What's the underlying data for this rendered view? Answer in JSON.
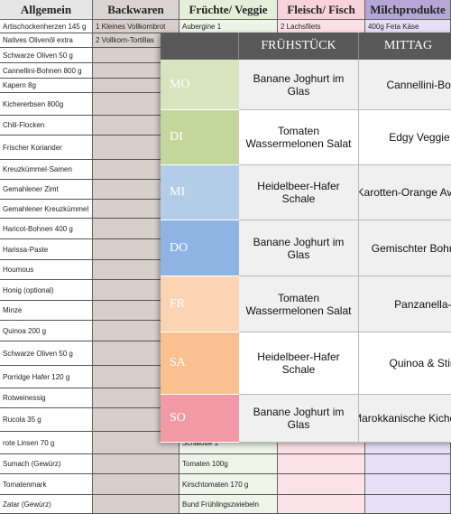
{
  "shopping_list": {
    "columns": [
      {
        "header": "Allgemein",
        "top_items": [
          "Artischockenherzen 145 g",
          "Natives Olivenöl extra",
          "Schwarze Oliven 50 g",
          "Cannellini-Bohnen 800 g",
          "Kapern 8g",
          "Kichererbsen 800g",
          "Chili-Flocken",
          "Frischer Koriander",
          "Kreuzkümmel-Samen",
          "Gemahlener Zimt",
          "Gemahlener Kreuzkümmel",
          "Haricot-Bohnen 400 g",
          "Harissa-Paste",
          "Houmous",
          "Honig (optional)",
          "Minze",
          "Quinoa 200 g",
          "Schwarze Oliven 50 g",
          "Porridge Hafer 120 g",
          "Rotweinessig",
          "Rucola 35 g",
          "rote Linsen 70 g",
          "Sumach (Gewürz)",
          "Tomatenmark",
          "Zatar (Gewürz)"
        ],
        "bottom_items": []
      },
      {
        "header": "Backwaren",
        "top_items": [
          "1 Kleines Vollkornbrot",
          "2 Vollkorn-Tortillas"
        ],
        "bottom_items": []
      },
      {
        "header": "Früchte/ Veggie",
        "top_items": [
          "Aubergine 1"
        ],
        "bottom_items": [
          "Schalotte 1",
          "Tomaten 100g",
          "Kirschtomaten 170 g",
          "Bund Frühlingszwiebeln"
        ]
      },
      {
        "header": "Fleisch/ Fisch",
        "top_items": [
          "2 Lachsfilets"
        ],
        "bottom_items": []
      },
      {
        "header": "Milchprodukte",
        "top_items": [
          "400g Feta Käse"
        ],
        "bottom_items": []
      }
    ]
  },
  "meal_plan": {
    "headers": [
      "FRÜHSTÜCK",
      "MITTAG"
    ],
    "days": [
      {
        "day": "MO",
        "breakfast": "Banane Joghurt im Glas",
        "lunch": "Cannellini-Bohnen"
      },
      {
        "day": "DI",
        "breakfast": "Tomaten Wassermelonen Salat",
        "lunch": "Edgy Veggie Wra"
      },
      {
        "day": "MI",
        "breakfast": "Heidelbeer-Hafer Schale",
        "lunch": "Karotten-Orange Avocadosalat"
      },
      {
        "day": "DO",
        "breakfast": "Banane Joghurt im Glas",
        "lunch": "Gemischter Bohnensalat"
      },
      {
        "day": "FR",
        "breakfast": "Tomaten Wassermelonen Salat",
        "lunch": "Panzanella-Sal"
      },
      {
        "day": "SA",
        "breakfast": "Heidelbeer-Hafer Schale",
        "lunch": "Quinoa & Stir Fry"
      },
      {
        "day": "SO",
        "breakfast": "Banane Joghurt im Glas",
        "lunch": "Marokkanische Kichererbsen Su"
      }
    ]
  }
}
